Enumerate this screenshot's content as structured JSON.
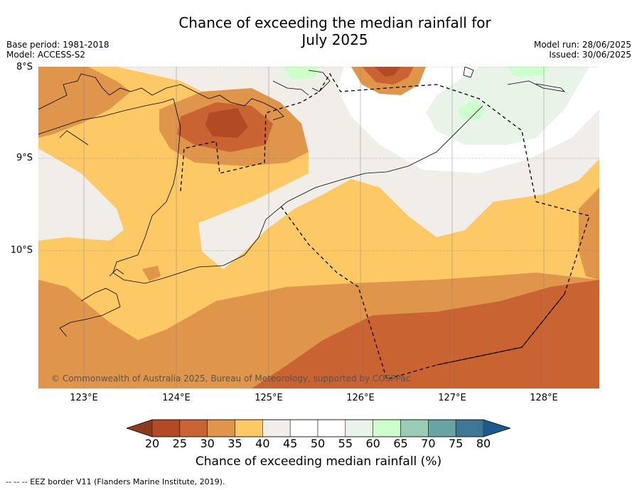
{
  "title": {
    "line1": "Chance of exceeding the median rainfall for",
    "line2": "July 2025"
  },
  "meta": {
    "base_period": "Base period: 1981-2018",
    "model": "Model: ACCESS-S2",
    "model_run": "Model run: 28/06/2025",
    "issued": "Issued: 30/06/2025"
  },
  "map": {
    "lat_labels": [
      "8°S",
      "9°S",
      "10°S"
    ],
    "lon_labels": [
      "123°E",
      "124°E",
      "125°E",
      "126°E",
      "127°E",
      "128°E"
    ],
    "credit": "© Commonwealth of Australia 2025, Bureau of Meteorology, supported by COSPPac"
  },
  "colorbar": {
    "label": "Chance of exceeding median rainfall (%)",
    "ticks": [
      "20",
      "25",
      "30",
      "35",
      "40",
      "45",
      "50",
      "55",
      "60",
      "65",
      "70",
      "75",
      "80"
    ],
    "colors": {
      "below20": "#8c3a1e",
      "c20_25": "#b24a26",
      "c25_30": "#c96331",
      "c30_35": "#e0964a",
      "c35_40": "#fdc964",
      "c40_45": "#f1ede8",
      "c45_50": "#ffffff",
      "c50_55": "#ffffff",
      "c55_60": "#e9f4e9",
      "c60_65": "#ccffcc",
      "c65_70": "#99ccb3",
      "c70_75": "#6aa3a3",
      "c75_80": "#3f7896",
      "above80": "#1a5a8c"
    }
  },
  "footnote": "--  --  -- EEZ border V11 (Flanders Marine Institute, 2019)."
}
